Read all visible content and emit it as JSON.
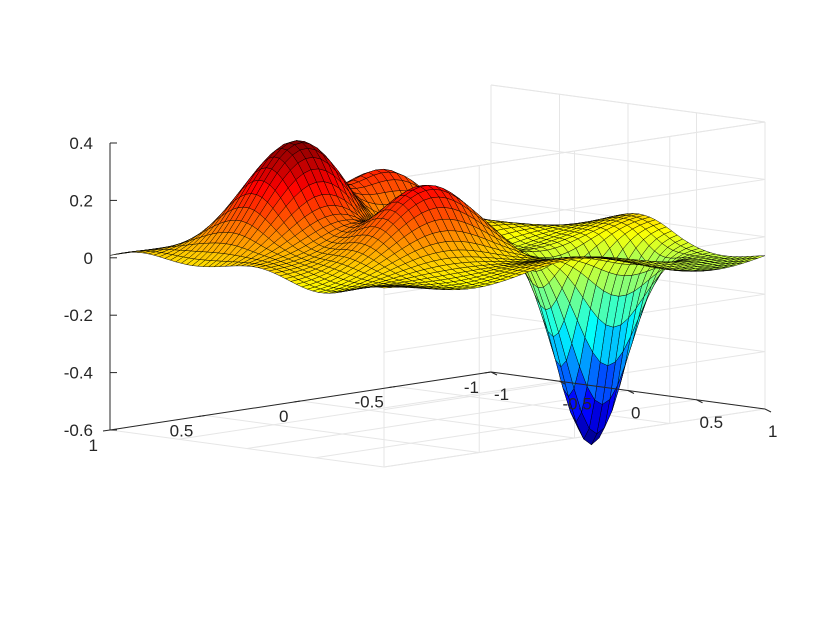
{
  "chart_data": {
    "type": "surface",
    "colormap": "jet",
    "edge_color": "#000000",
    "background": "#ffffff",
    "grid": true,
    "xlim": [
      -1,
      1
    ],
    "ylim": [
      -1,
      1
    ],
    "zlim": [
      -0.6,
      0.4
    ],
    "x_ticks": [
      {
        "value": -1,
        "label": "-1"
      },
      {
        "value": -0.5,
        "label": "-0.5"
      },
      {
        "value": 0,
        "label": "0"
      },
      {
        "value": 0.5,
        "label": "0.5"
      },
      {
        "value": 1,
        "label": "1"
      }
    ],
    "y_ticks": [
      {
        "value": -1,
        "label": "-1"
      },
      {
        "value": -0.5,
        "label": "-0.5"
      },
      {
        "value": 0,
        "label": "0"
      },
      {
        "value": 0.5,
        "label": "0.5"
      },
      {
        "value": 1,
        "label": "1"
      }
    ],
    "z_ticks": [
      {
        "value": 0.4,
        "label": "0.4"
      },
      {
        "value": 0.2,
        "label": "0.2"
      },
      {
        "value": 0,
        "label": "0"
      },
      {
        "value": -0.2,
        "label": "-0.2"
      },
      {
        "value": -0.4,
        "label": "-0.4"
      },
      {
        "value": -0.6,
        "label": "-0.6"
      }
    ],
    "surface_features": [
      {
        "kind": "peak",
        "x": -0.33,
        "y": 0.48,
        "z": 0.4
      },
      {
        "kind": "peak",
        "x": 0.3,
        "y": 0.3,
        "z": 0.22
      },
      {
        "kind": "peak",
        "x": -0.55,
        "y": -0.1,
        "z": 0.12
      },
      {
        "kind": "trough",
        "x": 0.4,
        "y": -0.52,
        "z": -0.58
      },
      {
        "kind": "corner",
        "x": -1,
        "y": 1,
        "z": 0.0
      },
      {
        "kind": "corner",
        "x": -1,
        "y": -1,
        "z": -0.17
      },
      {
        "kind": "corner",
        "x": 1,
        "y": 1,
        "z": -0.02
      },
      {
        "kind": "corner",
        "x": 1,
        "y": -1,
        "z": -0.15
      }
    ],
    "grid_resolution": 50
  }
}
